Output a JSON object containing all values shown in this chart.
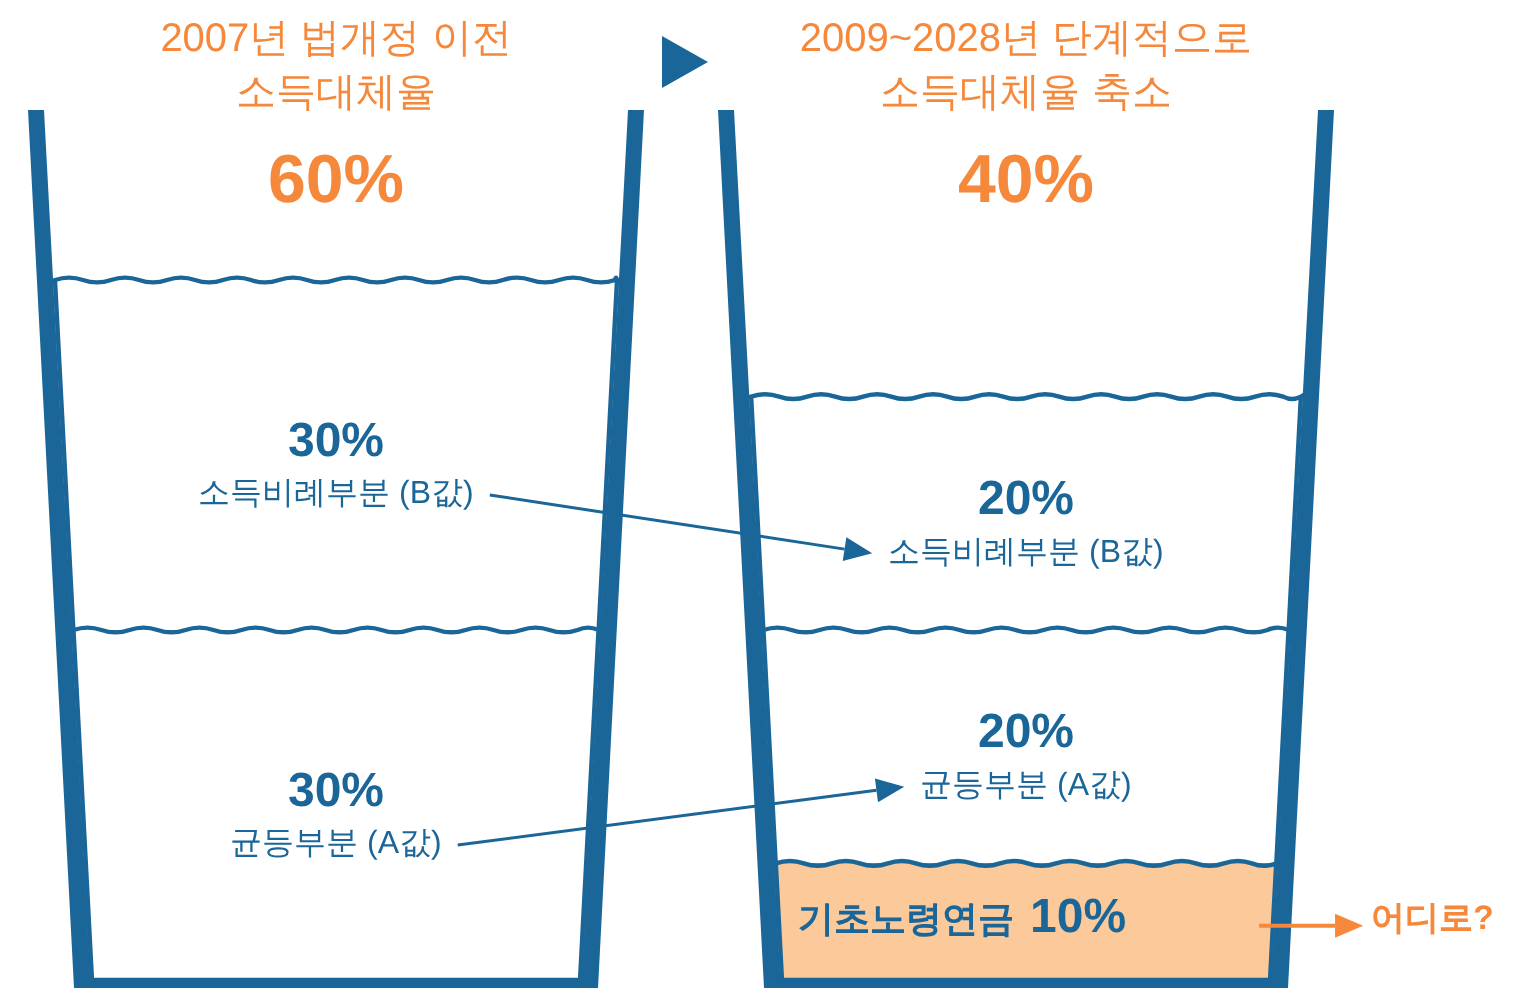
{
  "chart_data": {
    "type": "bar",
    "stacked": true,
    "categories": [
      "2007년 법개정 이전 소득대체율",
      "2009~2028년 단계적으로 소득대체율 축소"
    ],
    "series": [
      {
        "color": "#fcc99a",
        "values": [
          null,
          10
        ],
        "value_labels": [
          null,
          "10%"
        ]
      },
      {
        "color": "#ffffff",
        "values": [
          30,
          20
        ],
        "value_labels": [
          "30%",
          "20%"
        ]
      },
      {
        "color": "#ffffff",
        "values": [
          30,
          20
        ],
        "value_labels": [
          "30%",
          "20%"
        ]
      }
    ],
    "annotations": [
      "60%",
      "40%",
      "균등부분 (A값)",
      "소득비례부분 (B값)",
      "기초노령연금",
      "균등부분 (A값)",
      "소득비례부분 (B값)",
      "어디로?"
    ]
  }
}
